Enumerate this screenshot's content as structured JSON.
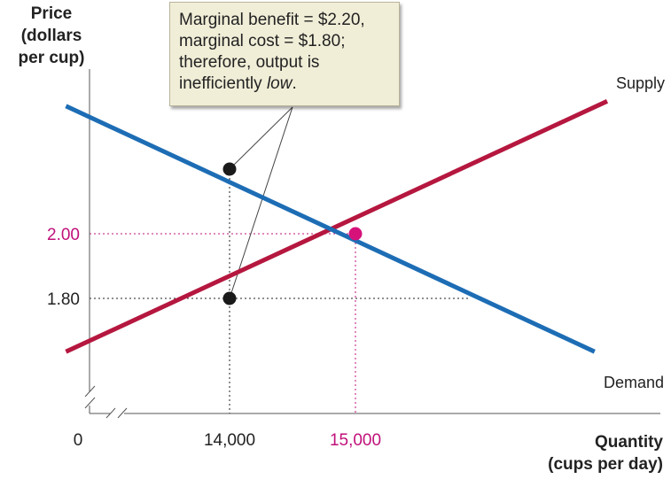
{
  "chart_data": {
    "type": "line",
    "ylabel": [
      "Price",
      "(dollars",
      "per cup)"
    ],
    "xlabel": [
      "Quantity",
      "(cups per day)"
    ],
    "origin_label": "0",
    "x_ticks": [
      {
        "value": 14000,
        "label": "14,000",
        "color": "#222222"
      },
      {
        "value": 15000,
        "label": "15,000",
        "color": "#c0117a"
      }
    ],
    "y_ticks": [
      {
        "value": 2.0,
        "label": "2.00",
        "color": "#c0117a"
      },
      {
        "value": 1.8,
        "label": "1.80",
        "color": "#222222"
      }
    ],
    "series": [
      {
        "name": "Supply",
        "color": "#b5173f",
        "x": [
          12700,
          17000
        ],
        "y": [
          1.635,
          2.41
        ]
      },
      {
        "name": "Demand",
        "color": "#1d6db5",
        "x": [
          12700,
          16900
        ],
        "y": [
          2.395,
          1.635
        ]
      }
    ],
    "points": [
      {
        "x": 14000,
        "y": 2.2,
        "color": "#1a1a1a"
      },
      {
        "x": 14000,
        "y": 1.8,
        "color": "#1a1a1a"
      },
      {
        "x": 15000,
        "y": 2.0,
        "color": "#d6127a"
      }
    ],
    "annotation": {
      "lines": [
        "Marginal benefit = $2.20,",
        "marginal cost = $1.80;",
        "therefore, output is"
      ],
      "last_prefix": "inefficiently ",
      "last_emphasis": "low",
      "last_suffix": "."
    }
  }
}
